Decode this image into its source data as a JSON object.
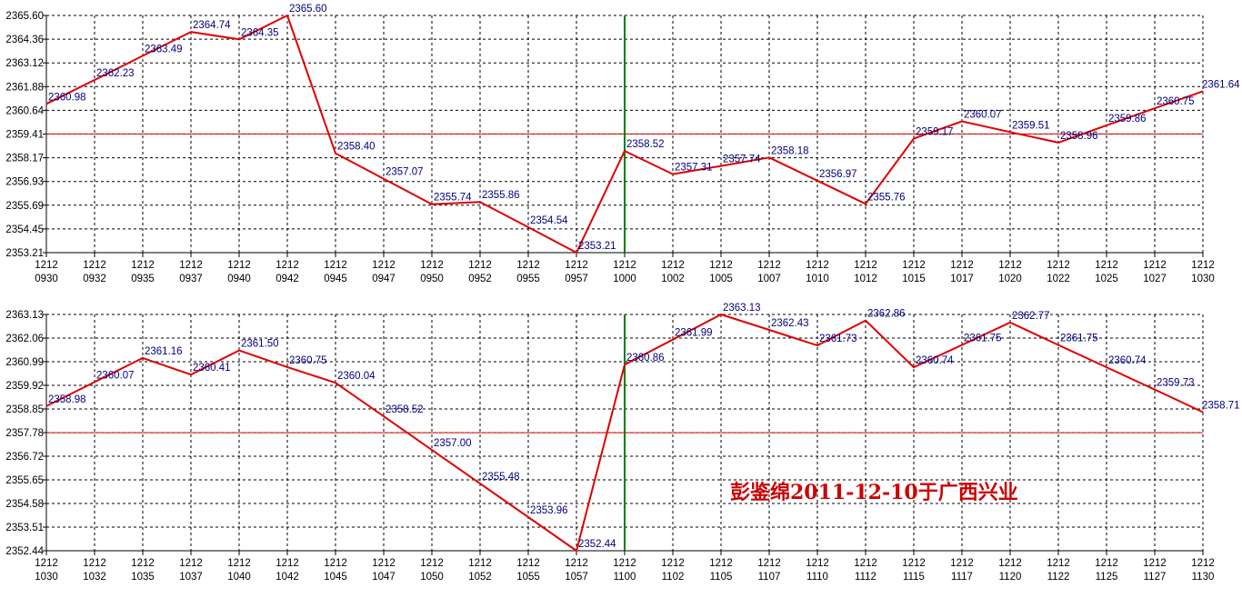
{
  "watermark": "彭鉴绵2011-12-10于广西兴业",
  "colors": {
    "series": "#e00000",
    "ref_line": "#e00000",
    "divider": "#008000",
    "label": "#000080",
    "grid": "#000000"
  },
  "chart_data": [
    {
      "type": "line",
      "ylim": [
        2353.21,
        2365.6
      ],
      "y_ticks": [
        "2365.60",
        "2364.36",
        "2363.12",
        "2361.88",
        "2360.64",
        "2359.41",
        "2358.17",
        "2356.93",
        "2355.69",
        "2354.45",
        "2353.21"
      ],
      "x_ticks": [
        [
          "1212",
          "0930"
        ],
        [
          "1212",
          "0932"
        ],
        [
          "1212",
          "0935"
        ],
        [
          "1212",
          "0937"
        ],
        [
          "1212",
          "0940"
        ],
        [
          "1212",
          "0942"
        ],
        [
          "1212",
          "0945"
        ],
        [
          "1212",
          "0947"
        ],
        [
          "1212",
          "0950"
        ],
        [
          "1212",
          "0952"
        ],
        [
          "1212",
          "0955"
        ],
        [
          "1212",
          "0957"
        ],
        [
          "1212",
          "1000"
        ],
        [
          "1212",
          "1002"
        ],
        [
          "1212",
          "1005"
        ],
        [
          "1212",
          "1007"
        ],
        [
          "1212",
          "1010"
        ],
        [
          "1212",
          "1012"
        ],
        [
          "1212",
          "1015"
        ],
        [
          "1212",
          "1017"
        ],
        [
          "1212",
          "1020"
        ],
        [
          "1212",
          "1022"
        ],
        [
          "1212",
          "1025"
        ],
        [
          "1212",
          "1027"
        ],
        [
          "1212",
          "1030"
        ]
      ],
      "reference_value": 2359.41,
      "divider_tick": 12,
      "points": [
        {
          "t": 0,
          "v": 2360.98,
          "label": "2360.98"
        },
        {
          "t": 1,
          "v": 2362.23,
          "label": "2362.23"
        },
        {
          "t": 2,
          "v": 2363.49,
          "label": "2363.49"
        },
        {
          "t": 3,
          "v": 2364.74,
          "label": "2364.74"
        },
        {
          "t": 4,
          "v": 2364.35,
          "label": "2364.35"
        },
        {
          "t": 5,
          "v": 2365.6,
          "label": "2365.60"
        },
        {
          "t": 6,
          "v": 2358.4,
          "label": "2358.40"
        },
        {
          "t": 7,
          "v": 2357.07,
          "label": "2357.07"
        },
        {
          "t": 8,
          "v": 2355.74,
          "label": "2355.74"
        },
        {
          "t": 9,
          "v": 2355.86,
          "label": "2355.86"
        },
        {
          "t": 10,
          "v": 2354.54,
          "label": "2354.54"
        },
        {
          "t": 11,
          "v": 2353.21,
          "label": "2353.21"
        },
        {
          "t": 12,
          "v": 2358.52,
          "label": "2358.52"
        },
        {
          "t": 13,
          "v": 2357.31,
          "label": "2357.31"
        },
        {
          "t": 14,
          "v": 2357.74,
          "label": "2357.74"
        },
        {
          "t": 15,
          "v": 2358.18,
          "label": "2358.18"
        },
        {
          "t": 16,
          "v": 2356.97,
          "label": "2356.97"
        },
        {
          "t": 17,
          "v": 2355.76,
          "label": "2355.76"
        },
        {
          "t": 18,
          "v": 2359.17,
          "label": "2359.17"
        },
        {
          "t": 19,
          "v": 2360.07,
          "label": "2360.07"
        },
        {
          "t": 20,
          "v": 2359.51,
          "label": "2359.51"
        },
        {
          "t": 21,
          "v": 2358.96,
          "label": "2358.96"
        },
        {
          "t": 22,
          "v": 2359.86,
          "label": "2359.86"
        },
        {
          "t": 23,
          "v": 2360.75,
          "label": "2360.75"
        },
        {
          "t": 24,
          "v": 2361.64,
          "label": "2361.64"
        }
      ]
    },
    {
      "type": "line",
      "ylim": [
        2352.44,
        2363.13
      ],
      "y_ticks": [
        "2363.13",
        "2362.06",
        "2360.99",
        "2359.92",
        "2358.85",
        "2357.78",
        "2356.72",
        "2355.65",
        "2354.58",
        "2353.51",
        "2352.44"
      ],
      "x_ticks": [
        [
          "1212",
          "1030"
        ],
        [
          "1212",
          "1032"
        ],
        [
          "1212",
          "1035"
        ],
        [
          "1212",
          "1037"
        ],
        [
          "1212",
          "1040"
        ],
        [
          "1212",
          "1042"
        ],
        [
          "1212",
          "1045"
        ],
        [
          "1212",
          "1047"
        ],
        [
          "1212",
          "1050"
        ],
        [
          "1212",
          "1052"
        ],
        [
          "1212",
          "1055"
        ],
        [
          "1212",
          "1057"
        ],
        [
          "1212",
          "1100"
        ],
        [
          "1212",
          "1102"
        ],
        [
          "1212",
          "1105"
        ],
        [
          "1212",
          "1107"
        ],
        [
          "1212",
          "1110"
        ],
        [
          "1212",
          "1112"
        ],
        [
          "1212",
          "1115"
        ],
        [
          "1212",
          "1117"
        ],
        [
          "1212",
          "1120"
        ],
        [
          "1212",
          "1122"
        ],
        [
          "1212",
          "1125"
        ],
        [
          "1212",
          "1127"
        ],
        [
          "1212",
          "1130"
        ]
      ],
      "reference_value": 2357.78,
      "divider_tick": 12,
      "points": [
        {
          "t": 0,
          "v": 2358.98,
          "label": "2358.98"
        },
        {
          "t": 1,
          "v": 2360.07,
          "label": "2360.07"
        },
        {
          "t": 2,
          "v": 2361.16,
          "label": "2361.16"
        },
        {
          "t": 3,
          "v": 2360.41,
          "label": "2360.41"
        },
        {
          "t": 4,
          "v": 2361.5,
          "label": "2361.50"
        },
        {
          "t": 5,
          "v": 2360.75,
          "label": "2360.75"
        },
        {
          "t": 6,
          "v": 2360.04,
          "label": "2360.04"
        },
        {
          "t": 7,
          "v": 2358.52,
          "label": "2358.52"
        },
        {
          "t": 8,
          "v": 2357.0,
          "label": "2357.00"
        },
        {
          "t": 9,
          "v": 2355.48,
          "label": "2355.48"
        },
        {
          "t": 10,
          "v": 2353.96,
          "label": "2353.96"
        },
        {
          "t": 11,
          "v": 2352.44,
          "label": "2352.44"
        },
        {
          "t": 12,
          "v": 2360.86,
          "label": "2360.86"
        },
        {
          "t": 13,
          "v": 2361.99,
          "label": "2361.99"
        },
        {
          "t": 14,
          "v": 2363.13,
          "label": "2363.13"
        },
        {
          "t": 15,
          "v": 2362.43,
          "label": "2362.43"
        },
        {
          "t": 16,
          "v": 2361.73,
          "label": "2361.73"
        },
        {
          "t": 17,
          "v": 2362.86,
          "label": "2362.86"
        },
        {
          "t": 18,
          "v": 2360.74,
          "label": "2360.74"
        },
        {
          "t": 19,
          "v": 2361.75,
          "label": "2361.75"
        },
        {
          "t": 20,
          "v": 2362.77,
          "label": "2362.77"
        },
        {
          "t": 21,
          "v": 2361.75,
          "label": "2361.75"
        },
        {
          "t": 22,
          "v": 2360.74,
          "label": "2360.74"
        },
        {
          "t": 23,
          "v": 2359.73,
          "label": "2359.73"
        },
        {
          "t": 24,
          "v": 2358.71,
          "label": "2358.71"
        }
      ]
    }
  ]
}
